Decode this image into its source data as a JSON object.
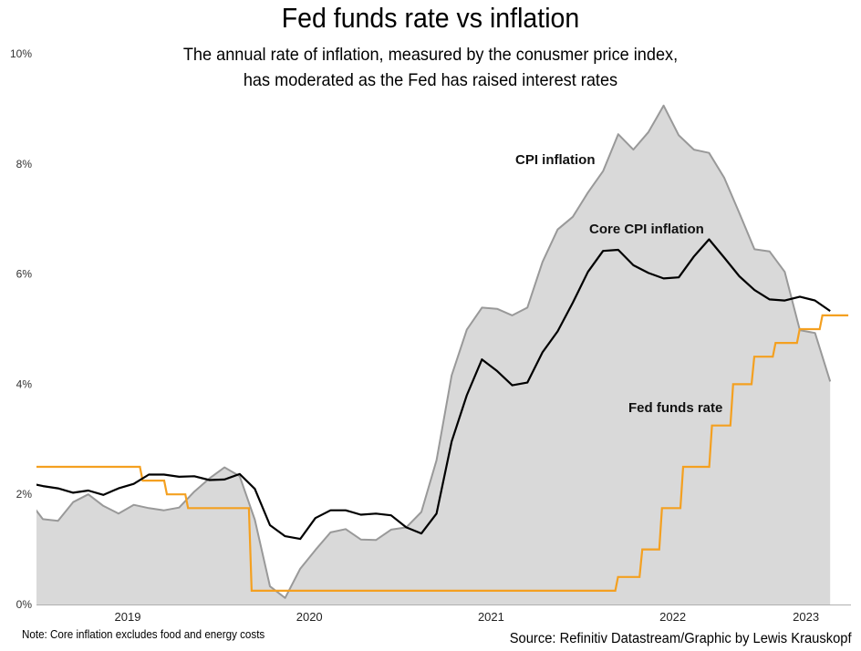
{
  "chart_data": {
    "type": "line",
    "title": "Fed funds rate vs inflation",
    "subtitle": [
      "The annual rate of inflation, measured by the conusmer price index,",
      "has moderated as the Fed has raised interest rates"
    ],
    "xlabel": "",
    "ylabel": "",
    "ylim": [
      0,
      10
    ],
    "yticks": [
      0,
      2,
      4,
      6,
      8,
      10
    ],
    "ytick_labels": [
      "0%",
      "2%",
      "4%",
      "6%",
      "8%",
      "10%"
    ],
    "xtick_labels": [
      "2019",
      "2020",
      "2021",
      "2022",
      "2023"
    ],
    "x_unit": "months since Jan 2019 (Dec 2018 = -1)",
    "x_range": [
      -0.6,
      53.2
    ],
    "xtick_positions": [
      5.6,
      17.6,
      29.6,
      41.6,
      50.4
    ],
    "grid": false,
    "legend": "inline labels",
    "series": [
      {
        "name": "CPI inflation",
        "style": "area",
        "start_month": -1,
        "values": [
          1.91,
          1.55,
          1.52,
          1.86,
          2.0,
          1.79,
          1.65,
          1.81,
          1.75,
          1.71,
          1.76,
          2.05,
          2.29,
          2.49,
          2.33,
          1.54,
          0.33,
          0.12,
          0.65,
          0.99,
          1.31,
          1.37,
          1.18,
          1.17,
          1.36,
          1.4,
          1.68,
          2.62,
          4.16,
          4.99,
          5.39,
          5.37,
          5.25,
          5.39,
          6.22,
          6.81,
          7.04,
          7.48,
          7.87,
          8.54,
          8.26,
          8.58,
          9.06,
          8.52,
          8.26,
          8.2,
          7.75,
          7.11,
          6.45,
          6.41,
          6.04,
          4.98,
          4.93,
          4.05
        ]
      },
      {
        "name": "Core CPI inflation",
        "style": "line",
        "start_month": -1,
        "values": [
          2.21,
          2.15,
          2.11,
          2.03,
          2.07,
          1.99,
          2.11,
          2.19,
          2.36,
          2.36,
          2.32,
          2.33,
          2.26,
          2.27,
          2.37,
          2.1,
          1.44,
          1.24,
          1.19,
          1.57,
          1.71,
          1.71,
          1.63,
          1.65,
          1.62,
          1.4,
          1.29,
          1.65,
          2.96,
          3.8,
          4.45,
          4.24,
          3.98,
          4.03,
          4.58,
          4.96,
          5.48,
          6.04,
          6.42,
          6.44,
          6.16,
          6.02,
          5.92,
          5.94,
          6.32,
          6.63,
          6.3,
          5.96,
          5.71,
          5.54,
          5.52,
          5.59,
          5.52,
          5.33
        ]
      },
      {
        "name": "Fed funds rate",
        "style": "step",
        "initial_value": 2.5,
        "changes": [
          [
            6.5,
            2.25
          ],
          [
            8.1,
            2.0
          ],
          [
            9.5,
            1.75
          ],
          [
            13.7,
            0.25
          ],
          [
            37.9,
            0.5
          ],
          [
            39.5,
            1.0
          ],
          [
            40.8,
            1.75
          ],
          [
            42.2,
            2.5
          ],
          [
            44.1,
            3.25
          ],
          [
            45.5,
            4.0
          ],
          [
            46.9,
            4.5
          ],
          [
            48.3,
            4.75
          ],
          [
            49.9,
            5.0
          ],
          [
            51.4,
            5.25
          ]
        ],
        "end_month": 53.2
      }
    ],
    "annotations": [
      "CPI inflation",
      "Core CPI inflation",
      "Fed funds rate"
    ],
    "colors": {
      "cpi_fill": "#d9d9d9",
      "cpi_line": "#999999",
      "core_line": "#000000",
      "fed_line": "#f4a020",
      "axis": "#b0b0b0"
    }
  },
  "footer": {
    "note": "Note: Core inflation excludes food and energy costs",
    "source": "Source: Refinitiv Datastream/Graphic by Lewis Krauskopf"
  }
}
